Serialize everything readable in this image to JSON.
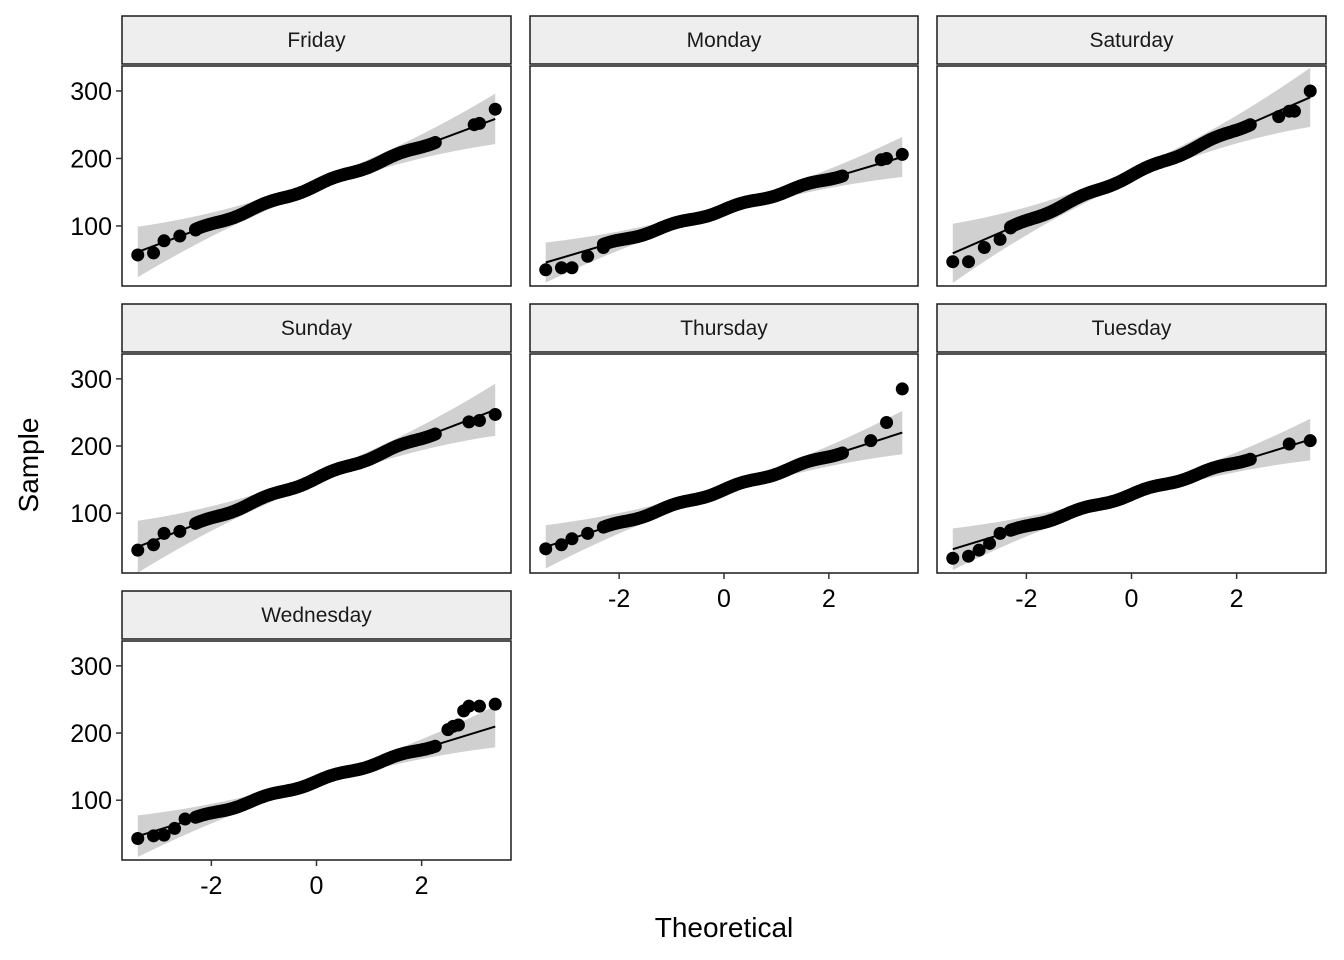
{
  "chart_data": {
    "type": "scatter",
    "subtype": "qq-plot facets",
    "xlabel": "Theoretical",
    "ylabel": "Sample",
    "xlim": [
      -3.7,
      3.7
    ],
    "ylim": [
      11,
      337
    ],
    "xticks": [
      -2,
      0,
      2
    ],
    "xtick_labels": [
      "-2",
      "0",
      "2"
    ],
    "yticks": [
      100,
      200,
      300
    ],
    "ytick_labels": [
      "100",
      "200",
      "300"
    ],
    "grid": false,
    "facets": [
      {
        "name": "Friday",
        "line_intercept": 160,
        "line_slope": 29,
        "points": [
          [
            -3.4,
            57
          ],
          [
            -3.1,
            60
          ],
          [
            -2.9,
            78
          ],
          [
            -2.6,
            85
          ],
          [
            -2.3,
            94
          ],
          [
            3.0,
            250
          ],
          [
            3.1,
            252
          ],
          [
            3.4,
            273
          ]
        ]
      },
      {
        "name": "Monday",
        "line_intercept": 124,
        "line_slope": 23,
        "points": [
          [
            -3.4,
            35
          ],
          [
            -3.1,
            38
          ],
          [
            -2.9,
            38
          ],
          [
            -2.6,
            55
          ],
          [
            -2.3,
            68
          ],
          [
            3.0,
            198
          ],
          [
            3.1,
            200
          ],
          [
            3.4,
            206
          ]
        ]
      },
      {
        "name": "Saturday",
        "line_intercept": 175,
        "line_slope": 34,
        "points": [
          [
            -3.4,
            47
          ],
          [
            -3.1,
            47
          ],
          [
            -2.8,
            68
          ],
          [
            -2.5,
            80
          ],
          [
            -2.3,
            97
          ],
          [
            2.8,
            262
          ],
          [
            3.0,
            270
          ],
          [
            3.1,
            270
          ],
          [
            3.4,
            300
          ]
        ]
      },
      {
        "name": "Sunday",
        "line_intercept": 152,
        "line_slope": 30,
        "points": [
          [
            -3.4,
            45
          ],
          [
            -3.1,
            53
          ],
          [
            -2.9,
            70
          ],
          [
            -2.6,
            73
          ],
          [
            2.9,
            236
          ],
          [
            3.1,
            238
          ],
          [
            3.4,
            247
          ]
        ]
      },
      {
        "name": "Thursday",
        "line_intercept": 135,
        "line_slope": 25,
        "points": [
          [
            -3.4,
            47
          ],
          [
            -3.1,
            53
          ],
          [
            -2.9,
            62
          ],
          [
            -2.6,
            70
          ],
          [
            2.8,
            208
          ],
          [
            3.1,
            235
          ],
          [
            3.4,
            285
          ]
        ]
      },
      {
        "name": "Tuesday",
        "line_intercept": 128,
        "line_slope": 24,
        "points": [
          [
            -3.4,
            33
          ],
          [
            -3.1,
            36
          ],
          [
            -2.9,
            45
          ],
          [
            -2.7,
            55
          ],
          [
            -2.5,
            70
          ],
          [
            3.0,
            203
          ],
          [
            3.4,
            208
          ]
        ]
      },
      {
        "name": "Wednesday",
        "line_intercept": 128,
        "line_slope": 24,
        "points": [
          [
            -3.4,
            43
          ],
          [
            -3.1,
            47
          ],
          [
            -2.9,
            48
          ],
          [
            -2.7,
            58
          ],
          [
            -2.5,
            72
          ],
          [
            2.5,
            205
          ],
          [
            2.6,
            210
          ],
          [
            2.7,
            212
          ],
          [
            2.8,
            233
          ],
          [
            2.9,
            240
          ],
          [
            3.1,
            240
          ],
          [
            3.4,
            243
          ]
        ]
      }
    ]
  }
}
